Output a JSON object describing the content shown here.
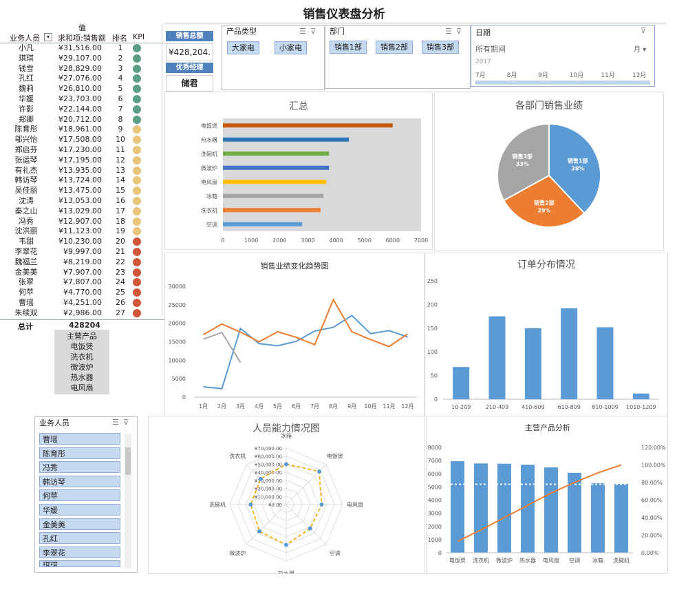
{
  "title": "销售仪表盘分析",
  "pivot": {
    "value_header": "值",
    "col_person": "业务人员",
    "col_amount": "求和项:销售额",
    "col_rank": "排名",
    "col_kpi": "KPI",
    "rows": [
      {
        "name": "小凡",
        "amount": "¥31,516.00",
        "rank": "1",
        "kpi": "green"
      },
      {
        "name": "琪琪",
        "amount": "¥29,107.00",
        "rank": "2",
        "kpi": "green"
      },
      {
        "name": "钱雪",
        "amount": "¥28,829.00",
        "rank": "3",
        "kpi": "green"
      },
      {
        "name": "孔红",
        "amount": "¥27,076.00",
        "rank": "4",
        "kpi": "green"
      },
      {
        "name": "魏莉",
        "amount": "¥26,810.00",
        "rank": "5",
        "kpi": "green"
      },
      {
        "name": "华媛",
        "amount": "¥23,703.00",
        "rank": "6",
        "kpi": "green"
      },
      {
        "name": "许影",
        "amount": "¥22,144.00",
        "rank": "7",
        "kpi": "green"
      },
      {
        "name": "郑卿",
        "amount": "¥20,712.00",
        "rank": "8",
        "kpi": "green"
      },
      {
        "name": "陈育彤",
        "amount": "¥18,961.00",
        "rank": "9",
        "kpi": "yellow"
      },
      {
        "name": "邬兴怡",
        "amount": "¥17,508.00",
        "rank": "10",
        "kpi": "yellow"
      },
      {
        "name": "郑启芬",
        "amount": "¥17,230.00",
        "rank": "11",
        "kpi": "yellow"
      },
      {
        "name": "张运琴",
        "amount": "¥17,195.00",
        "rank": "12",
        "kpi": "yellow"
      },
      {
        "name": "有礼杰",
        "amount": "¥13,935.00",
        "rank": "13",
        "kpi": "yellow"
      },
      {
        "name": "韩访琴",
        "amount": "¥13,724.00",
        "rank": "14",
        "kpi": "yellow"
      },
      {
        "name": "吴佳丽",
        "amount": "¥13,475.00",
        "rank": "15",
        "kpi": "yellow"
      },
      {
        "name": "沈涛",
        "amount": "¥13,053.00",
        "rank": "16",
        "kpi": "yellow"
      },
      {
        "name": "秦之山",
        "amount": "¥13,029.00",
        "rank": "17",
        "kpi": "yellow"
      },
      {
        "name": "冯秀",
        "amount": "¥12,907.00",
        "rank": "18",
        "kpi": "yellow"
      },
      {
        "name": "沈洪丽",
        "amount": "¥11,123.00",
        "rank": "19",
        "kpi": "yellow"
      },
      {
        "name": "韦甜",
        "amount": "¥10,230.00",
        "rank": "20",
        "kpi": "red"
      },
      {
        "name": "李翠花",
        "amount": "¥9,997.00",
        "rank": "21",
        "kpi": "red"
      },
      {
        "name": "魏福兰",
        "amount": "¥8,219.00",
        "rank": "22",
        "kpi": "red"
      },
      {
        "name": "金美美",
        "amount": "¥7,907.00",
        "rank": "23",
        "kpi": "red"
      },
      {
        "name": "张翠",
        "amount": "¥7,807.00",
        "rank": "24",
        "kpi": "red"
      },
      {
        "name": "何苹",
        "amount": "¥4,770.00",
        "rank": "25",
        "kpi": "red"
      },
      {
        "name": "曹瑶",
        "amount": "¥4,251.00",
        "rank": "26",
        "kpi": "red"
      },
      {
        "name": "朱续双",
        "amount": "¥2,986.00",
        "rank": "27",
        "kpi": "red"
      }
    ],
    "total_label": "总计",
    "total_value": "428204",
    "kpi_colors": {
      "green": "#5b9e84",
      "yellow": "#e8c57a",
      "red": "#d0573a"
    }
  },
  "main_products": {
    "header": "主营产品",
    "items": [
      "电饭煲",
      "洗衣机",
      "微波炉",
      "热水器",
      "电风扇"
    ]
  },
  "cards": {
    "total_label": "销售总额",
    "total_value": "¥428,204.",
    "best_label": "优秀经理",
    "best_value": "储君"
  },
  "slicer_product": {
    "title": "产品类型",
    "items": [
      "大家电",
      "小家电"
    ]
  },
  "slicer_dept": {
    "title": "部门",
    "items": [
      "销售1部",
      "销售2部",
      "销售3部"
    ]
  },
  "slicer_date": {
    "title": "日期",
    "period": "所有期间",
    "unit": "月 ▾",
    "year": "2017",
    "months": [
      "7月",
      "8月",
      "9月",
      "10月",
      "11月",
      "12月"
    ]
  },
  "person_slicer": {
    "title": "业务人员",
    "items": [
      "曹瑶",
      "陈育彤",
      "冯秀",
      "韩访琴",
      "何苹",
      "华媛",
      "金美美",
      "孔红",
      "李翠花",
      "琪琪"
    ]
  },
  "colors": {
    "blue": "#5b9bd5",
    "orange": "#ed7d31",
    "gray": "#a5a5a5",
    "accent": "#4f81bd",
    "gold": "#f0b323"
  },
  "chart_data": [
    {
      "type": "bar",
      "title": "汇总",
      "categories": [
        "电饭煲",
        "热水器",
        "洗碗机",
        "微波炉",
        "电风扇",
        "冰箱",
        "洗衣机",
        "空调"
      ],
      "values": [
        6000,
        4450,
        3750,
        3750,
        3650,
        3550,
        3450,
        2800
      ],
      "bar_colors": [
        "#c55a11",
        "#2e75b6",
        "#70ad47",
        "#4472c4",
        "#ffc000",
        "#a5a5a5",
        "#ed7d31",
        "#5b9bd5"
      ],
      "xlim": [
        0,
        7000
      ],
      "xticks": [
        "0",
        "1000",
        "2000",
        "3000",
        "4000",
        "5000",
        "6000",
        "7000"
      ]
    },
    {
      "type": "pie",
      "title": "各部门销售业绩",
      "series": [
        {
          "name": "销售1部",
          "value": 38,
          "label": "销售1部",
          "pct": "38%",
          "color": "#5b9bd5"
        },
        {
          "name": "销售2部",
          "value": 29,
          "label": "销售2部",
          "pct": "29%",
          "color": "#ed7d31"
        },
        {
          "name": "销售3部",
          "value": 33,
          "label": "销售3部",
          "pct": "33%",
          "color": "#a5a5a5"
        }
      ]
    },
    {
      "type": "line",
      "title": "销售业绩变化趋势图",
      "categories": [
        "1月",
        "2月",
        "3月",
        "4月",
        "5月",
        "6月",
        "7月",
        "8月",
        "9月",
        "10月",
        "11月",
        "12月"
      ],
      "ylim": [
        0,
        30000
      ],
      "yticks": [
        "0",
        "5000",
        "10000",
        "15000",
        "20000",
        "25000",
        "30000"
      ],
      "series": [
        {
          "color": "#5b9bd5",
          "values": [
            2800,
            2300,
            18600,
            14500,
            13900,
            15100,
            17900,
            18900,
            22100,
            17200,
            18000,
            16300
          ]
        },
        {
          "color": "#ed7d31",
          "values": [
            16900,
            19800,
            17600,
            15000,
            17700,
            16200,
            14200,
            26400,
            17700,
            15600,
            13700,
            17100
          ]
        },
        {
          "color": "#a5a5a5",
          "values": [
            15700,
            17500,
            9400,
            null,
            null,
            null,
            null,
            null,
            null,
            null,
            null,
            null
          ]
        }
      ]
    },
    {
      "type": "bar",
      "title": "订单分布情况",
      "categories": [
        "10-209",
        "210-409",
        "410-609",
        "610-809",
        "810-1009",
        "1010-1209"
      ],
      "values": [
        68,
        175,
        150,
        192,
        152,
        12
      ],
      "ylim": [
        0,
        250
      ],
      "yticks": [
        "0",
        "50",
        "100",
        "150",
        "200",
        "250"
      ]
    },
    {
      "type": "radar",
      "title": "人员能力情况图",
      "categories": [
        "冰箱",
        "电饭煲",
        "电风扇",
        "空调",
        "热水器",
        "微波炉",
        "洗碗机",
        "洗衣机"
      ],
      "rticks": [
        "¥0.00",
        "¥10,000.00",
        "¥20,000.00",
        "¥30,000.00",
        "¥40,000.00",
        "¥50,000.00",
        "¥60,000.00",
        "¥70,000.00"
      ],
      "rmax": 70000,
      "values": [
        50000,
        58000,
        44000,
        42000,
        50000,
        47000,
        44000,
        45000
      ]
    },
    {
      "type": "bar",
      "title": "主营产品分析",
      "categories": [
        "电饭煲",
        "洗衣机",
        "微波炉",
        "热水器",
        "电风扇",
        "空调",
        "冰箱",
        "洗碗机"
      ],
      "values": [
        6950,
        6780,
        6760,
        6680,
        6480,
        6070,
        5290,
        5230
      ],
      "ylim": [
        0,
        8000
      ],
      "yticks": [
        "0",
        "1000",
        "2000",
        "3000",
        "4000",
        "5000",
        "6000",
        "7000",
        "8000"
      ],
      "y2ticks": [
        "0.00%",
        "20.00%",
        "40.00%",
        "60.00%",
        "80.00%",
        "100.00%",
        "120.00%"
      ],
      "cumulative_pct": [
        13,
        26,
        40,
        54,
        68,
        80,
        91,
        100
      ],
      "reference_pct": 78
    }
  ]
}
